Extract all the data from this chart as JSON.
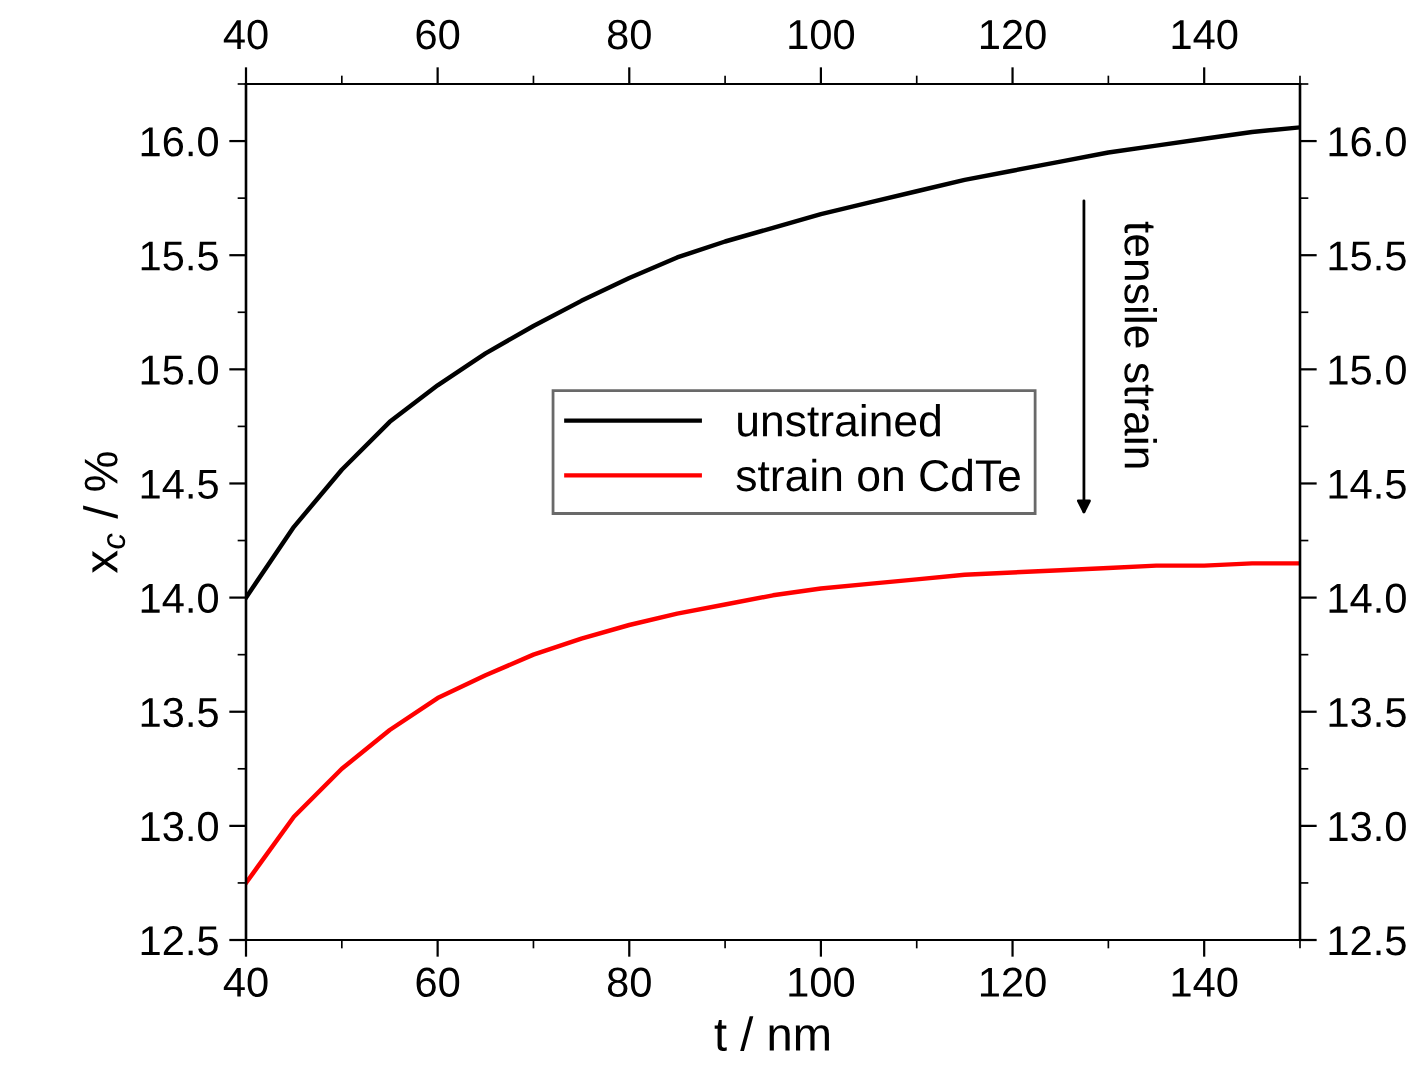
{
  "chart_data": {
    "type": "line",
    "xlabel": "t / nm",
    "ylabel": "x$_{c}$ / %",
    "x": [
      40,
      45,
      50,
      55,
      60,
      65,
      70,
      75,
      80,
      85,
      90,
      95,
      100,
      105,
      110,
      115,
      120,
      125,
      130,
      135,
      140,
      145,
      150
    ],
    "series": [
      {
        "name": "unstrained",
        "color": "#000000",
        "values": [
          14.0,
          14.31,
          14.56,
          14.77,
          14.93,
          15.07,
          15.19,
          15.3,
          15.4,
          15.49,
          15.56,
          15.62,
          15.68,
          15.73,
          15.78,
          15.83,
          15.87,
          15.91,
          15.95,
          15.98,
          16.01,
          16.04,
          16.06
        ]
      },
      {
        "name": "strain on CdTe",
        "color": "#ff0000",
        "values": [
          12.75,
          13.04,
          13.25,
          13.42,
          13.56,
          13.66,
          13.75,
          13.82,
          13.88,
          13.93,
          13.97,
          14.01,
          14.04,
          14.06,
          14.08,
          14.1,
          14.11,
          14.12,
          14.13,
          14.14,
          14.14,
          14.15,
          14.15
        ]
      }
    ],
    "xlim": [
      40,
      150
    ],
    "xticks": [
      40,
      60,
      80,
      100,
      120,
      140
    ],
    "x2lim": [
      40,
      150
    ],
    "x2ticks": [
      40,
      60,
      80,
      100,
      120,
      140
    ],
    "ylim": [
      12.5,
      16.25
    ],
    "yticks": [
      {
        "value": 12.5,
        "label": "12.5"
      },
      {
        "value": 13,
        "label": "13.0"
      },
      {
        "value": 13.5,
        "label": "13.5"
      },
      {
        "value": 14,
        "label": "14.0"
      },
      {
        "value": 14.5,
        "label": "14.5"
      },
      {
        "value": 15,
        "label": "15.0"
      },
      {
        "value": 15.5,
        "label": "15.5"
      },
      {
        "value": 16,
        "label": "16.0"
      }
    ],
    "y2lim": [
      12.5,
      16.25
    ],
    "y2ticks": [
      {
        "value": 12.5,
        "label": "12.5"
      },
      {
        "value": 13,
        "label": "13.0"
      },
      {
        "value": 13.5,
        "label": "13.5"
      },
      {
        "value": 14,
        "label": "14.0"
      },
      {
        "value": 14.5,
        "label": "14.5"
      },
      {
        "value": 15,
        "label": "15.0"
      },
      {
        "value": 15.5,
        "label": "15.5"
      },
      {
        "value": 16,
        "label": "16.0"
      }
    ],
    "annotations": [
      "tensile strain"
    ],
    "legend": "center",
    "grid": false,
    "marker": "none",
    "line_style": "solid"
  }
}
